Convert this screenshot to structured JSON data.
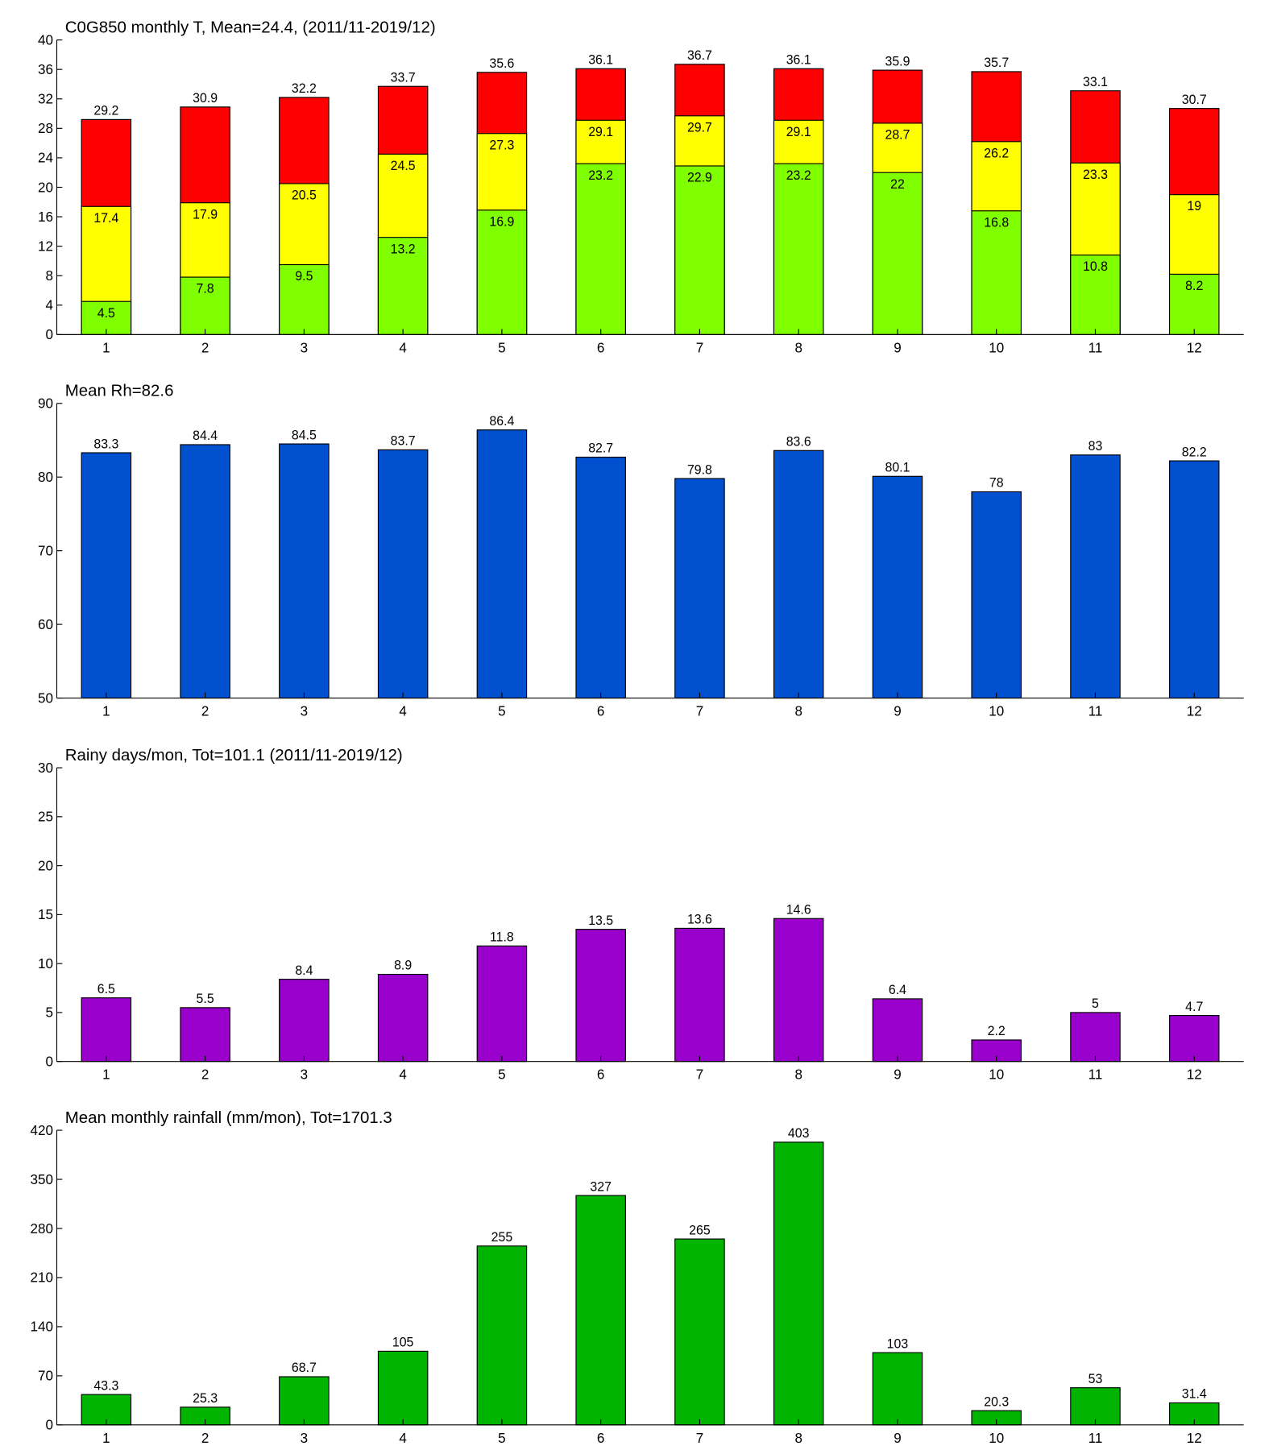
{
  "chart_data": [
    {
      "type": "bar",
      "title": "C0G850 monthly T, Mean=24.4, (2011/11-2019/12)",
      "categories": [
        "1",
        "2",
        "3",
        "4",
        "5",
        "6",
        "7",
        "8",
        "9",
        "10",
        "11",
        "12"
      ],
      "series": [
        {
          "color": "#ff0000",
          "values": [
            29.2,
            30.9,
            32.2,
            33.7,
            35.6,
            36.1,
            36.7,
            36.1,
            35.9,
            35.7,
            33.1,
            30.7
          ]
        },
        {
          "color": "#ffff00",
          "values": [
            17.4,
            17.9,
            20.5,
            24.5,
            27.3,
            29.1,
            29.7,
            29.1,
            28.7,
            26.2,
            23.3,
            19
          ]
        },
        {
          "color": "#80ff00",
          "values": [
            4.5,
            7.8,
            9.5,
            13.2,
            16.9,
            23.2,
            22.9,
            23.2,
            22,
            16.8,
            10.8,
            8.2
          ]
        }
      ],
      "ylim": [
        0,
        40
      ],
      "yticks": [
        0,
        4,
        8,
        12,
        16,
        20,
        24,
        28,
        32,
        36,
        40
      ]
    },
    {
      "type": "bar",
      "title": "Mean Rh=82.6",
      "categories": [
        "1",
        "2",
        "3",
        "4",
        "5",
        "6",
        "7",
        "8",
        "9",
        "10",
        "11",
        "12"
      ],
      "series": [
        {
          "color": "#0050d0",
          "values": [
            83.3,
            84.4,
            84.5,
            83.7,
            86.4,
            82.7,
            79.8,
            83.6,
            80.1,
            78,
            83,
            82.2
          ]
        }
      ],
      "ylim": [
        50,
        90
      ],
      "yticks": [
        50,
        60,
        70,
        80,
        90
      ]
    },
    {
      "type": "bar",
      "title": "Rainy days/mon, Tot=101.1 (2011/11-2019/12)",
      "categories": [
        "1",
        "2",
        "3",
        "4",
        "5",
        "6",
        "7",
        "8",
        "9",
        "10",
        "11",
        "12"
      ],
      "series": [
        {
          "color": "#9900cc",
          "values": [
            6.5,
            5.5,
            8.4,
            8.9,
            11.8,
            13.5,
            13.6,
            14.6,
            6.4,
            2.2,
            5,
            4.7
          ]
        }
      ],
      "ylim": [
        0,
        30
      ],
      "yticks": [
        0,
        5,
        10,
        15,
        20,
        25,
        30
      ]
    },
    {
      "type": "bar",
      "title": "Mean monthly rainfall (mm/mon), Tot=1701.3",
      "categories": [
        "1",
        "2",
        "3",
        "4",
        "5",
        "6",
        "7",
        "8",
        "9",
        "10",
        "11",
        "12"
      ],
      "series": [
        {
          "color": "#00b400",
          "values": [
            43.3,
            25.3,
            68.7,
            105,
            255,
            327,
            265,
            403,
            103,
            20.3,
            53,
            31.4
          ]
        }
      ],
      "ylim": [
        0,
        420
      ],
      "yticks": [
        0,
        70,
        140,
        210,
        280,
        350,
        420
      ]
    }
  ]
}
